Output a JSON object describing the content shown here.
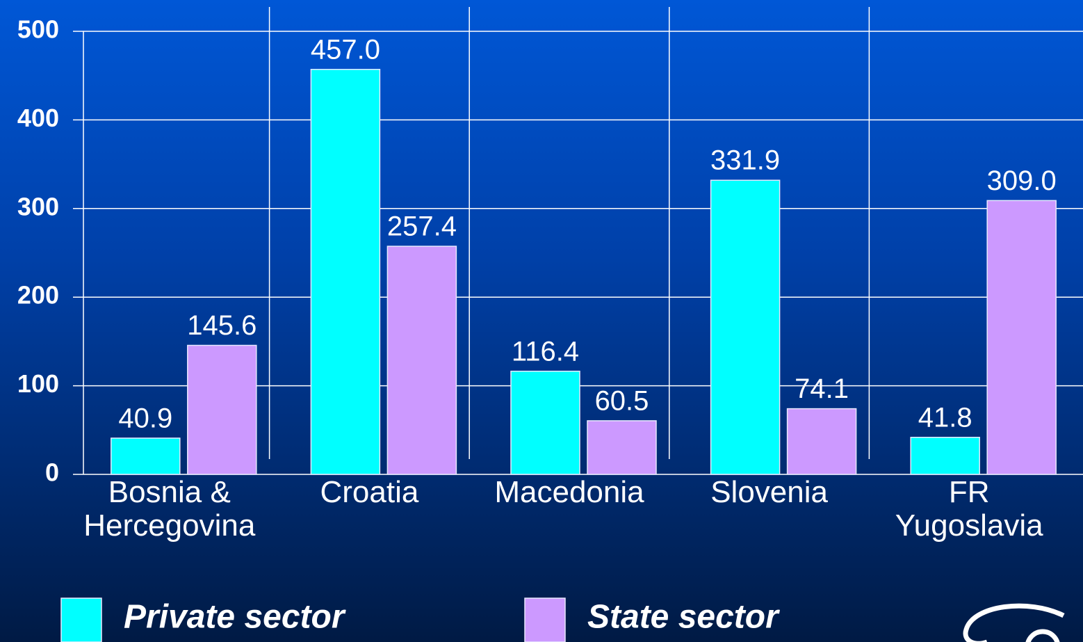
{
  "chart_data": {
    "type": "bar",
    "categories": [
      "Bosnia &\nHercegovina",
      "Croatia",
      "Macedonia",
      "Slovenia",
      "FR\nYugoslavia"
    ],
    "series": [
      {
        "name": "Private sector",
        "color": "#00ffff",
        "values": [
          40.9,
          457.0,
          116.4,
          331.9,
          41.8
        ],
        "value_labels": [
          "40.9",
          "457.0",
          "116.4",
          "331.9",
          "41.8"
        ]
      },
      {
        "name": "State sector",
        "color": "#cc99ff",
        "values": [
          145.6,
          257.4,
          60.5,
          74.1,
          309.0
        ],
        "value_labels": [
          "145.6",
          "257.4",
          "60.5",
          "74.1",
          "309.0"
        ]
      }
    ],
    "ylim": [
      0,
      500
    ],
    "yticks": [
      0,
      100,
      200,
      300,
      400,
      500
    ],
    "grid": true
  }
}
